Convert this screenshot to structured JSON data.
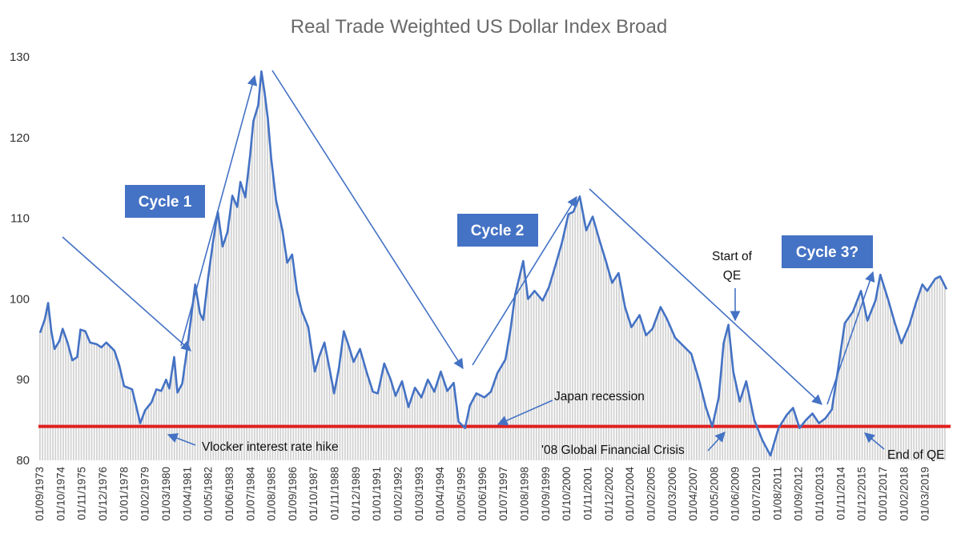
{
  "chart_data": {
    "type": "line",
    "title": "Real Trade Weighted US Dollar Index Broad",
    "xlabel": "",
    "ylabel": "",
    "ylim": [
      80,
      130
    ],
    "yticks": [
      80,
      90,
      100,
      110,
      120,
      130
    ],
    "grid": false,
    "x_tick_labels": [
      "01/09/1973",
      "01/10/1974",
      "01/11/1975",
      "01/12/1976",
      "01/01/1978",
      "01/02/1979",
      "01/03/1980",
      "01/04/1981",
      "01/05/1982",
      "01/06/1983",
      "01/07/1984",
      "01/08/1985",
      "01/09/1986",
      "01/10/1987",
      "01/11/1988",
      "01/12/1989",
      "01/01/1991",
      "01/02/1992",
      "01/03/1993",
      "01/04/1994",
      "01/05/1995",
      "01/06/1996",
      "01/07/1997",
      "01/08/1998",
      "01/09/1999",
      "01/10/2000",
      "01/11/2001",
      "01/12/2002",
      "01/01/2004",
      "01/02/2005",
      "01/03/2006",
      "01/04/2007",
      "01/05/2008",
      "01/06/2009",
      "01/07/2010",
      "01/08/2011",
      "01/09/2012",
      "01/10/2013",
      "01/11/2014",
      "01/12/2015",
      "01/01/2017",
      "01/02/2018",
      "01/03/2019"
    ],
    "series": [
      {
        "type": "line",
        "color": "#4472c4",
        "points": [
          [
            "1973-09",
            95.8
          ],
          [
            "1973-12",
            97.5
          ],
          [
            "1974-02",
            99.5
          ],
          [
            "1974-04",
            96.0
          ],
          [
            "1974-06",
            93.8
          ],
          [
            "1974-09",
            94.8
          ],
          [
            "1974-11",
            96.3
          ],
          [
            "1975-02",
            94.6
          ],
          [
            "1975-05",
            92.4
          ],
          [
            "1975-08",
            92.8
          ],
          [
            "1975-10",
            96.2
          ],
          [
            "1976-01",
            96.0
          ],
          [
            "1976-04",
            94.6
          ],
          [
            "1976-08",
            94.4
          ],
          [
            "1976-11",
            94.0
          ],
          [
            "1977-02",
            94.6
          ],
          [
            "1977-07",
            93.6
          ],
          [
            "1977-10",
            91.8
          ],
          [
            "1978-01",
            89.2
          ],
          [
            "1978-06",
            88.8
          ],
          [
            "1978-09",
            86.3
          ],
          [
            "1978-11",
            84.6
          ],
          [
            "1979-02",
            86.2
          ],
          [
            "1979-06",
            87.2
          ],
          [
            "1979-09",
            88.8
          ],
          [
            "1979-12",
            88.6
          ],
          [
            "1980-03",
            90.0
          ],
          [
            "1980-05",
            88.9
          ],
          [
            "1980-08",
            92.8
          ],
          [
            "1980-10",
            88.4
          ],
          [
            "1981-01",
            89.5
          ],
          [
            "1981-04",
            93.8
          ],
          [
            "1981-07",
            98.5
          ],
          [
            "1981-09",
            101.8
          ],
          [
            "1981-12",
            98.2
          ],
          [
            "1982-02",
            97.4
          ],
          [
            "1982-05",
            102.6
          ],
          [
            "1982-08",
            107.0
          ],
          [
            "1982-11",
            110.8
          ],
          [
            "1983-02",
            106.5
          ],
          [
            "1983-05",
            108.3
          ],
          [
            "1983-08",
            112.8
          ],
          [
            "1983-11",
            111.4
          ],
          [
            "1984-01",
            114.5
          ],
          [
            "1984-04",
            112.6
          ],
          [
            "1984-07",
            117.8
          ],
          [
            "1984-09",
            122.0
          ],
          [
            "1984-12",
            124.0
          ],
          [
            "1985-02",
            128.2
          ],
          [
            "1985-04",
            125.5
          ],
          [
            "1985-06",
            122.3
          ],
          [
            "1985-08",
            117.5
          ],
          [
            "1985-11",
            112.3
          ],
          [
            "1986-03",
            108.5
          ],
          [
            "1986-06",
            104.5
          ],
          [
            "1986-09",
            105.5
          ],
          [
            "1986-12",
            101.0
          ],
          [
            "1987-03",
            98.5
          ],
          [
            "1987-07",
            96.5
          ],
          [
            "1987-11",
            91.0
          ],
          [
            "1988-02",
            93.0
          ],
          [
            "1988-05",
            94.6
          ],
          [
            "1988-08",
            91.5
          ],
          [
            "1988-11",
            88.3
          ],
          [
            "1989-02",
            91.5
          ],
          [
            "1989-05",
            96.0
          ],
          [
            "1989-08",
            94.2
          ],
          [
            "1989-11",
            92.2
          ],
          [
            "1990-03",
            93.8
          ],
          [
            "1990-07",
            91.0
          ],
          [
            "1990-11",
            88.5
          ],
          [
            "1991-02",
            88.3
          ],
          [
            "1991-06",
            92.0
          ],
          [
            "1991-10",
            90.0
          ],
          [
            "1992-01",
            88.0
          ],
          [
            "1992-05",
            89.8
          ],
          [
            "1992-09",
            86.6
          ],
          [
            "1993-01",
            89.0
          ],
          [
            "1993-05",
            87.8
          ],
          [
            "1993-09",
            90.0
          ],
          [
            "1994-01",
            88.5
          ],
          [
            "1994-05",
            91.0
          ],
          [
            "1994-09",
            88.6
          ],
          [
            "1995-01",
            89.6
          ],
          [
            "1995-04",
            84.8
          ],
          [
            "1995-08",
            84.0
          ],
          [
            "1995-11",
            86.8
          ],
          [
            "1996-03",
            88.3
          ],
          [
            "1996-08",
            87.8
          ],
          [
            "1996-12",
            88.5
          ],
          [
            "1997-04",
            90.8
          ],
          [
            "1997-09",
            92.5
          ],
          [
            "1997-12",
            96.0
          ],
          [
            "1998-03",
            100.5
          ],
          [
            "1998-08",
            104.7
          ],
          [
            "1998-11",
            100.0
          ],
          [
            "1999-03",
            101.0
          ],
          [
            "1999-08",
            99.8
          ],
          [
            "1999-12",
            101.5
          ],
          [
            "2000-04",
            104.2
          ],
          [
            "2000-08",
            107.0
          ],
          [
            "2000-12",
            110.5
          ],
          [
            "2001-03",
            110.8
          ],
          [
            "2001-07",
            112.7
          ],
          [
            "2001-11",
            108.5
          ],
          [
            "2002-03",
            110.2
          ],
          [
            "2002-07",
            107.4
          ],
          [
            "2002-11",
            104.8
          ],
          [
            "2003-03",
            102.0
          ],
          [
            "2003-07",
            103.2
          ],
          [
            "2003-11",
            99.0
          ],
          [
            "2004-03",
            96.5
          ],
          [
            "2004-08",
            98.0
          ],
          [
            "2004-12",
            95.5
          ],
          [
            "2005-04",
            96.3
          ],
          [
            "2005-09",
            99.0
          ],
          [
            "2006-01",
            97.5
          ],
          [
            "2006-06",
            95.2
          ],
          [
            "2006-11",
            94.2
          ],
          [
            "2007-04",
            93.2
          ],
          [
            "2007-09",
            89.8
          ],
          [
            "2008-01",
            86.6
          ],
          [
            "2008-05",
            84.2
          ],
          [
            "2008-09",
            87.8
          ],
          [
            "2008-12",
            94.5
          ],
          [
            "2009-03",
            96.8
          ],
          [
            "2009-06",
            91.0
          ],
          [
            "2009-10",
            87.3
          ],
          [
            "2010-02",
            89.8
          ],
          [
            "2010-07",
            85.0
          ],
          [
            "2010-12",
            82.5
          ],
          [
            "2011-05",
            80.6
          ],
          [
            "2011-10",
            84.0
          ],
          [
            "2012-03",
            85.6
          ],
          [
            "2012-07",
            86.5
          ],
          [
            "2012-11",
            84.0
          ],
          [
            "2013-03",
            85.0
          ],
          [
            "2013-07",
            85.8
          ],
          [
            "2013-11",
            84.6
          ],
          [
            "2014-03",
            85.2
          ],
          [
            "2014-07",
            86.3
          ],
          [
            "2014-11",
            91.5
          ],
          [
            "2015-03",
            97.0
          ],
          [
            "2015-08",
            98.4
          ],
          [
            "2016-01",
            101.0
          ],
          [
            "2016-05",
            97.3
          ],
          [
            "2016-10",
            99.8
          ],
          [
            "2017-01",
            103.0
          ],
          [
            "2017-06",
            99.8
          ],
          [
            "2017-10",
            97.0
          ],
          [
            "2018-02",
            94.5
          ],
          [
            "2018-07",
            96.8
          ],
          [
            "2018-11",
            99.5
          ],
          [
            "2019-03",
            101.8
          ],
          [
            "2019-06",
            101.0
          ],
          [
            "2019-11",
            102.5
          ],
          [
            "2020-02",
            102.8
          ],
          [
            "2020-06",
            101.2
          ]
        ]
      }
    ],
    "reference_lines": [
      {
        "y": 84.2,
        "color": "#e02020"
      }
    ],
    "annotations": [
      {
        "text": "Cycle 1",
        "boxed": true
      },
      {
        "text": "Cycle 2",
        "boxed": true
      },
      {
        "text": "Cycle 3?",
        "boxed": true
      },
      {
        "text": "Start of",
        "line2": "QE"
      },
      {
        "text": "Japan recession"
      },
      {
        "text": "Vlocker interest rate hike"
      },
      {
        "text": "'08 Global Financial Crisis"
      },
      {
        "text": "End of QE"
      }
    ],
    "cycle_box_color": "#4472c4"
  }
}
